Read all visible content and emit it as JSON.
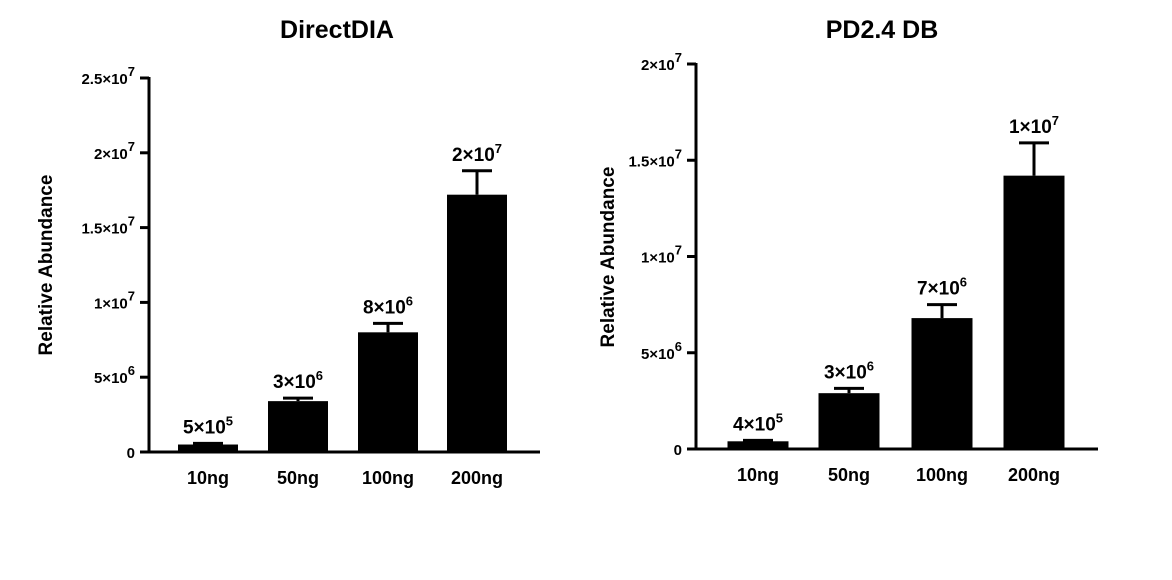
{
  "chart_data": [
    {
      "type": "bar",
      "title": "DirectDIA",
      "xlabel": "",
      "ylabel": "Relative Abundance",
      "categories": [
        "10ng",
        "50ng",
        "100ng",
        "200ng"
      ],
      "values": [
        500000,
        3400000,
        8000000,
        17200000
      ],
      "error_upper": [
        580000,
        3600000,
        8600000,
        18800000
      ],
      "ylim": [
        0,
        25000000
      ],
      "yticks": [
        {
          "value": 0,
          "base": "0",
          "exp": ""
        },
        {
          "value": 5000000,
          "base": "5×10",
          "exp": "6"
        },
        {
          "value": 10000000,
          "base": "1×10",
          "exp": "7"
        },
        {
          "value": 15000000,
          "base": "1.5×10",
          "exp": "7"
        },
        {
          "value": 20000000,
          "base": "2×10",
          "exp": "7"
        },
        {
          "value": 25000000,
          "base": "2.5×10",
          "exp": "7"
        }
      ],
      "data_labels": [
        {
          "base": "5×10",
          "exp": "5"
        },
        {
          "base": "3×10",
          "exp": "6"
        },
        {
          "base": "8×10",
          "exp": "6"
        },
        {
          "base": "2×10",
          "exp": "7"
        }
      ],
      "bar_color": "#000000",
      "grid": false,
      "legend": "none"
    },
    {
      "type": "bar",
      "title": "PD2.4 DB",
      "xlabel": "",
      "ylabel": "Relative Abundance",
      "categories": [
        "10ng",
        "50ng",
        "100ng",
        "200ng"
      ],
      "values": [
        400000,
        2900000,
        6800000,
        14200000
      ],
      "error_upper": [
        450000,
        3150000,
        7500000,
        15900000
      ],
      "ylim": [
        0,
        20000000
      ],
      "yticks": [
        {
          "value": 0,
          "base": "0",
          "exp": ""
        },
        {
          "value": 5000000,
          "base": "5×10",
          "exp": "6"
        },
        {
          "value": 10000000,
          "base": "1×10",
          "exp": "7"
        },
        {
          "value": 15000000,
          "base": "1.5×10",
          "exp": "7"
        },
        {
          "value": 20000000,
          "base": "2×10",
          "exp": "7"
        }
      ],
      "data_labels": [
        {
          "base": "4×10",
          "exp": "5"
        },
        {
          "base": "3×10",
          "exp": "6"
        },
        {
          "base": "7×10",
          "exp": "6"
        },
        {
          "base": "1×10",
          "exp": "7"
        }
      ],
      "bar_color": "#000000",
      "grid": false,
      "legend": "none"
    }
  ]
}
